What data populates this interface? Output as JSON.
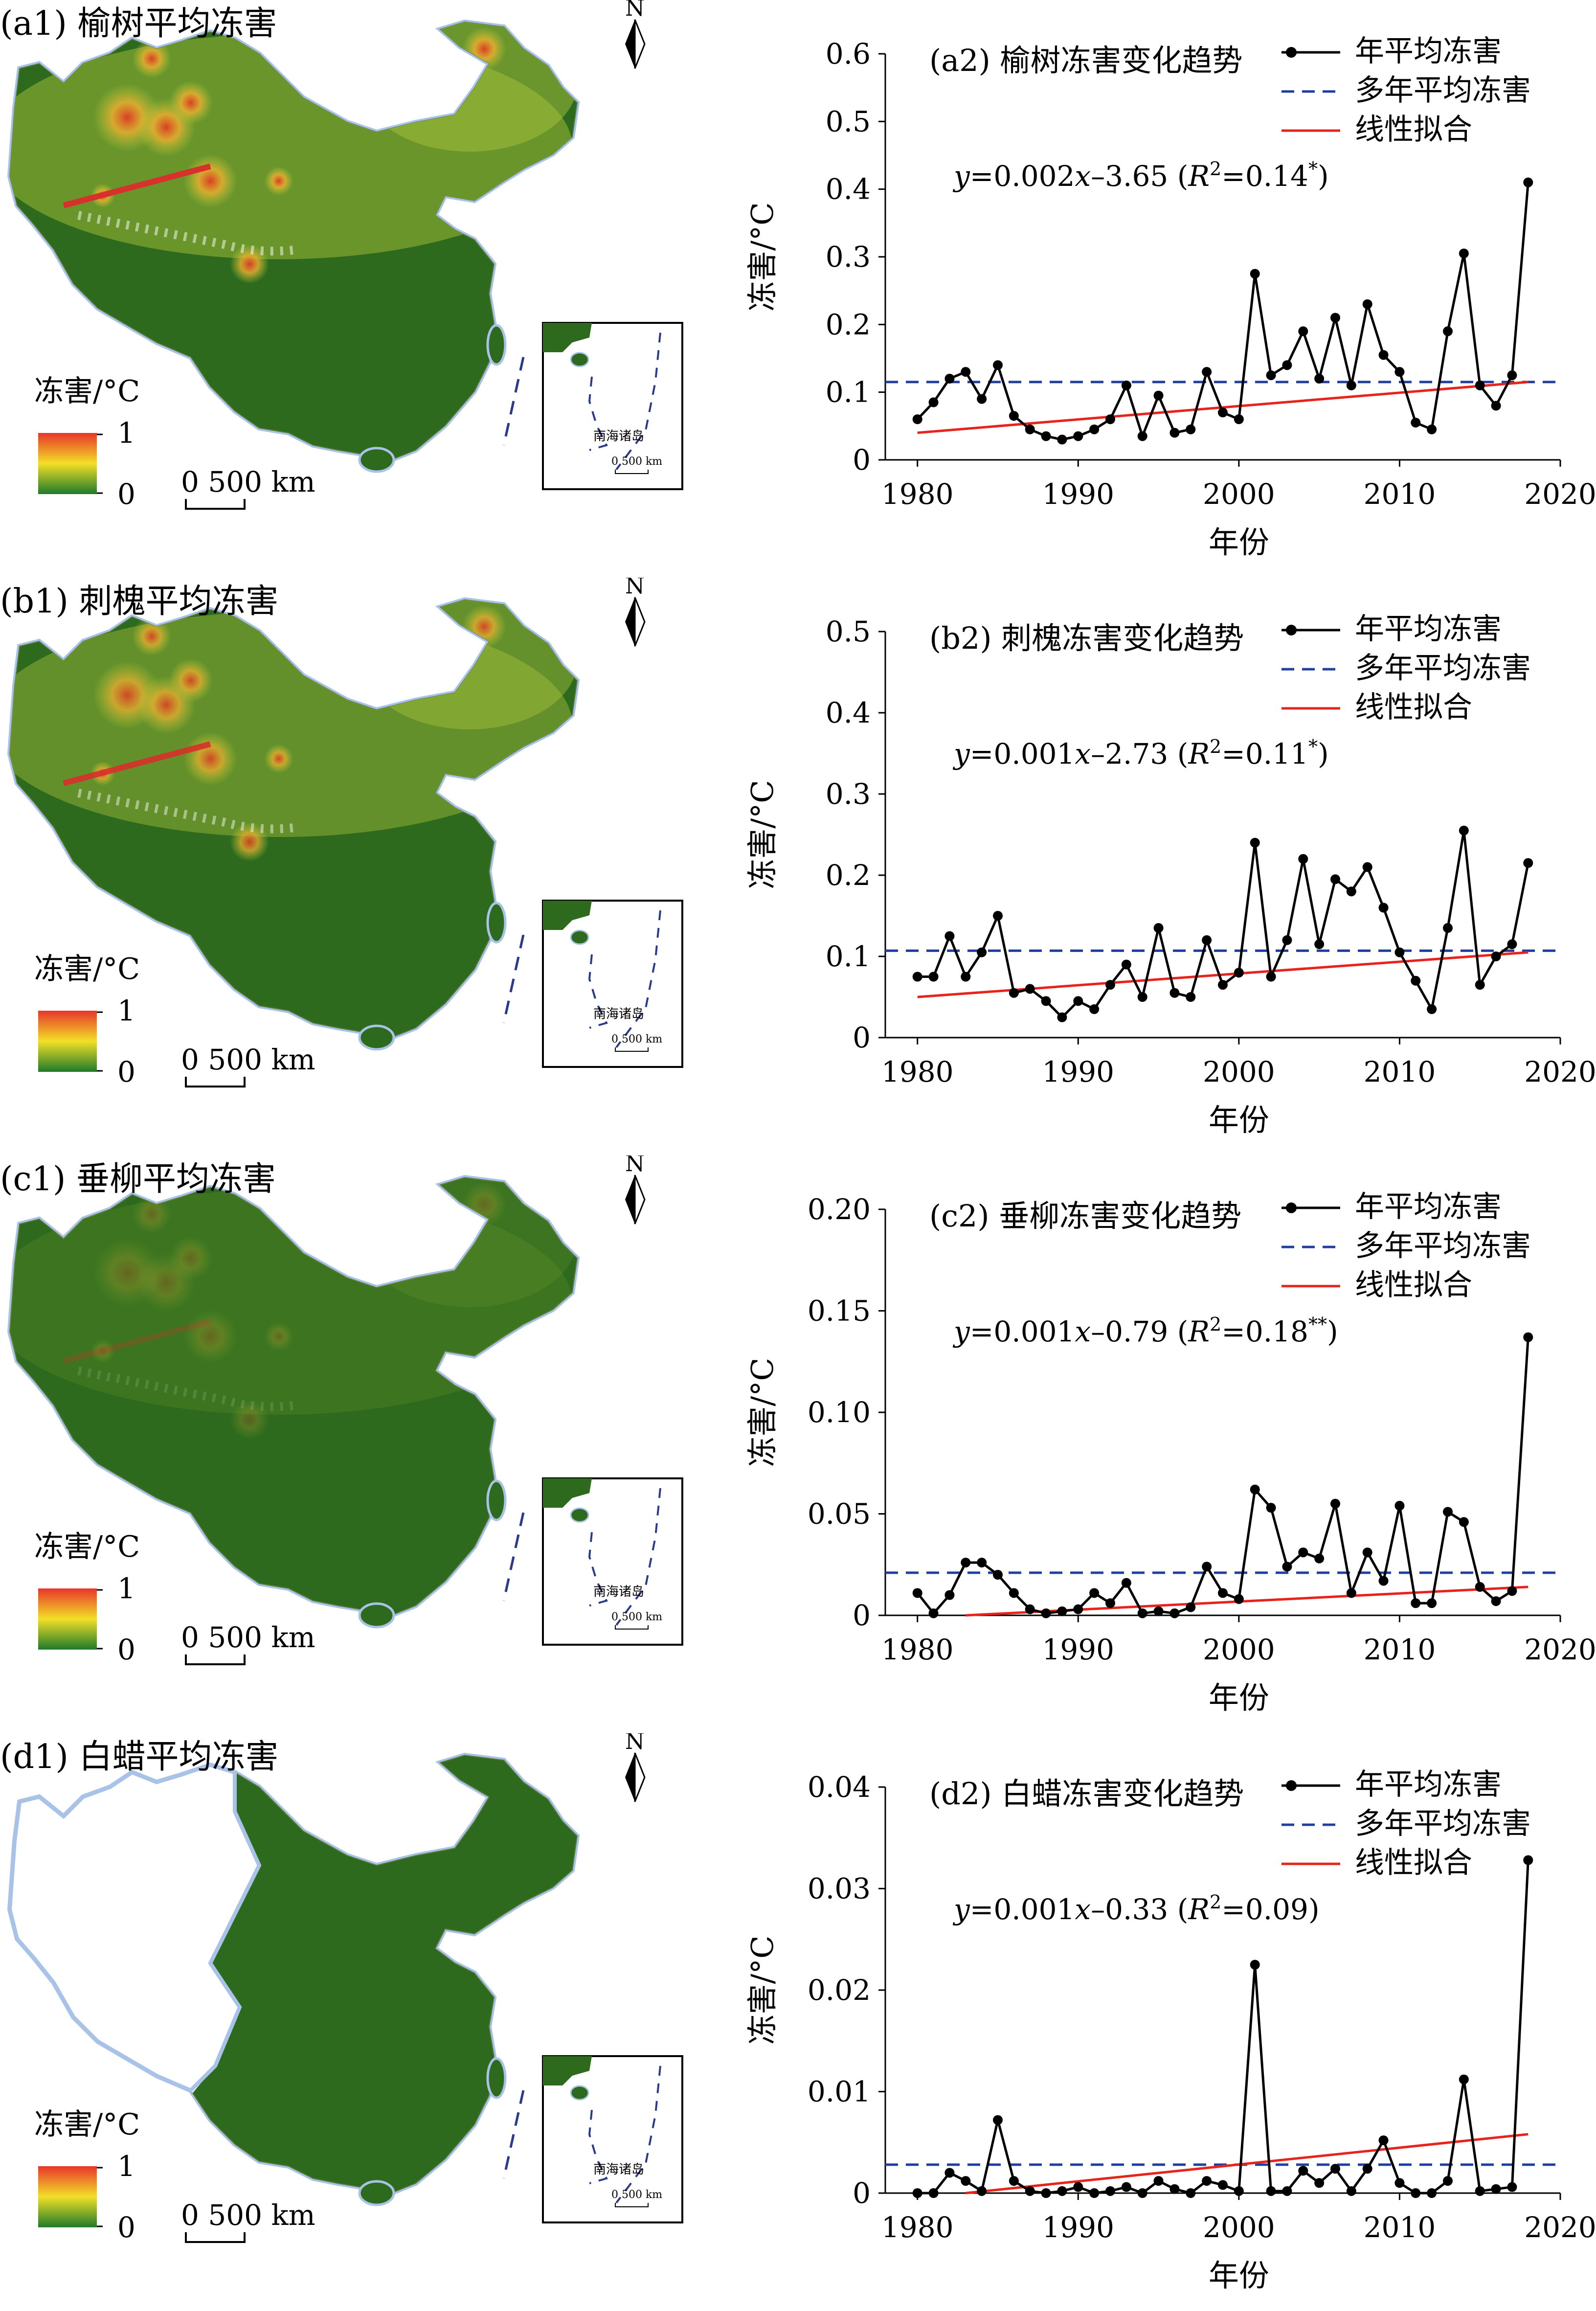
{
  "panels": [
    {
      "map": {
        "title": "(a1) 榆树平均冻害",
        "north": "N",
        "legend_title": "冻害/°C",
        "legend_max": "1",
        "legend_min": "0",
        "scale_text": "0   500 km",
        "inset_label": "南海诸岛",
        "inset_scale": "0   500 km",
        "west_blank": false,
        "hotspot_intensity": 1.0
      },
      "chart_data": {
        "type": "line",
        "title": "(a2) 榆树冻害变化趋势",
        "xlabel": "年份",
        "ylabel": "冻害/°C",
        "equation_parts": [
          "y",
          "=0.002",
          "x",
          "–3.65 (",
          "R",
          "2",
          "=0.14",
          "*",
          ")"
        ],
        "xlim": [
          1978,
          2020
        ],
        "ylim": [
          0,
          0.6
        ],
        "yticks": [
          "0",
          "0.1",
          "0.2",
          "0.3",
          "0.4",
          "0.5",
          "0.6"
        ],
        "ytick_values": [
          0,
          0.1,
          0.2,
          0.3,
          0.4,
          0.5,
          0.6
        ],
        "xticks": [
          "1980",
          "1990",
          "2000",
          "2010",
          "2020"
        ],
        "xtick_values": [
          1980,
          1990,
          2000,
          2010,
          2020
        ],
        "series": [
          {
            "name": "年平均冻害",
            "color": "#000000",
            "x": [
              1980,
              1981,
              1982,
              1983,
              1984,
              1985,
              1986,
              1987,
              1988,
              1989,
              1990,
              1991,
              1992,
              1993,
              1994,
              1995,
              1996,
              1997,
              1998,
              1999,
              2000,
              2001,
              2002,
              2003,
              2004,
              2005,
              2006,
              2007,
              2008,
              2009,
              2010,
              2011,
              2012,
              2013,
              2014,
              2015,
              2016,
              2017,
              2018
            ],
            "y": [
              0.06,
              0.085,
              0.12,
              0.13,
              0.09,
              0.14,
              0.065,
              0.045,
              0.035,
              0.03,
              0.035,
              0.045,
              0.06,
              0.11,
              0.035,
              0.095,
              0.04,
              0.045,
              0.13,
              0.07,
              0.06,
              0.275,
              0.125,
              0.14,
              0.19,
              0.12,
              0.21,
              0.11,
              0.23,
              0.155,
              0.13,
              0.055,
              0.045,
              0.19,
              0.305,
              0.11,
              0.08,
              0.125,
              0.41
            ]
          },
          {
            "name": "多年平均冻害",
            "color": "#1f3e9e",
            "value": 0.115
          },
          {
            "name": "线性拟合",
            "color": "#e8231b",
            "x": [
              1980,
              2018
            ],
            "y": [
              0.04,
              0.115
            ]
          }
        ]
      }
    },
    {
      "map": {
        "title": "(b1) 刺槐平均冻害",
        "north": "N",
        "legend_title": "冻害/°C",
        "legend_max": "1",
        "legend_min": "0",
        "scale_text": "0   500 km",
        "inset_label": "南海诸岛",
        "inset_scale": "0   500 km",
        "west_blank": false,
        "hotspot_intensity": 0.9
      },
      "chart_data": {
        "type": "line",
        "title": "(b2) 刺槐冻害变化趋势",
        "xlabel": "年份",
        "ylabel": "冻害/°C",
        "equation_parts": [
          "y",
          "=0.001",
          "x",
          "–2.73 (",
          "R",
          "2",
          "=0.11",
          "*",
          ")"
        ],
        "xlim": [
          1978,
          2020
        ],
        "ylim": [
          0,
          0.5
        ],
        "yticks": [
          "0",
          "0.1",
          "0.2",
          "0.3",
          "0.4",
          "0.5"
        ],
        "ytick_values": [
          0,
          0.1,
          0.2,
          0.3,
          0.4,
          0.5
        ],
        "xticks": [
          "1980",
          "1990",
          "2000",
          "2010",
          "2020"
        ],
        "xtick_values": [
          1980,
          1990,
          2000,
          2010,
          2020
        ],
        "series": [
          {
            "name": "年平均冻害",
            "color": "#000000",
            "x": [
              1980,
              1981,
              1982,
              1983,
              1984,
              1985,
              1986,
              1987,
              1988,
              1989,
              1990,
              1991,
              1992,
              1993,
              1994,
              1995,
              1996,
              1997,
              1998,
              1999,
              2000,
              2001,
              2002,
              2003,
              2004,
              2005,
              2006,
              2007,
              2008,
              2009,
              2010,
              2011,
              2012,
              2013,
              2014,
              2015,
              2016,
              2017,
              2018
            ],
            "y": [
              0.075,
              0.075,
              0.125,
              0.075,
              0.105,
              0.15,
              0.055,
              0.06,
              0.045,
              0.025,
              0.045,
              0.035,
              0.065,
              0.09,
              0.05,
              0.135,
              0.055,
              0.05,
              0.12,
              0.065,
              0.08,
              0.24,
              0.075,
              0.12,
              0.22,
              0.115,
              0.195,
              0.18,
              0.21,
              0.16,
              0.105,
              0.07,
              0.035,
              0.135,
              0.255,
              0.065,
              0.1,
              0.115,
              0.215
            ]
          },
          {
            "name": "多年平均冻害",
            "color": "#1f3e9e",
            "value": 0.107
          },
          {
            "name": "线性拟合",
            "color": "#e8231b",
            "x": [
              1980,
              2018
            ],
            "y": [
              0.05,
              0.105
            ]
          }
        ]
      }
    },
    {
      "map": {
        "title": "(c1) 垂柳平均冻害",
        "north": "N",
        "legend_title": "冻害/°C",
        "legend_max": "1",
        "legend_min": "0",
        "scale_text": "0   500 km",
        "inset_label": "南海诸岛",
        "inset_scale": "0   500 km",
        "west_blank": false,
        "hotspot_intensity": 0.25
      },
      "chart_data": {
        "type": "line",
        "title": "(c2) 垂柳冻害变化趋势",
        "xlabel": "年份",
        "ylabel": "冻害/°C",
        "equation_parts": [
          "y",
          "=0.001",
          "x",
          "–0.79 (",
          "R",
          "2",
          "=0.18",
          "**",
          ")"
        ],
        "xlim": [
          1978,
          2020
        ],
        "ylim": [
          0,
          0.2
        ],
        "yticks": [
          "0",
          "0.05",
          "0.10",
          "0.15",
          "0.20"
        ],
        "ytick_values": [
          0,
          0.05,
          0.1,
          0.15,
          0.2
        ],
        "xticks": [
          "1980",
          "1990",
          "2000",
          "2010",
          "2020"
        ],
        "xtick_values": [
          1980,
          1990,
          2000,
          2010,
          2020
        ],
        "series": [
          {
            "name": "年平均冻害",
            "color": "#000000",
            "x": [
              1980,
              1981,
              1982,
              1983,
              1984,
              1985,
              1986,
              1987,
              1988,
              1989,
              1990,
              1991,
              1992,
              1993,
              1994,
              1995,
              1996,
              1997,
              1998,
              1999,
              2000,
              2001,
              2002,
              2003,
              2004,
              2005,
              2006,
              2007,
              2008,
              2009,
              2010,
              2011,
              2012,
              2013,
              2014,
              2015,
              2016,
              2017,
              2018
            ],
            "y": [
              0.011,
              0.001,
              0.01,
              0.026,
              0.026,
              0.02,
              0.011,
              0.003,
              0.001,
              0.002,
              0.003,
              0.011,
              0.006,
              0.016,
              0.001,
              0.002,
              0.001,
              0.004,
              0.024,
              0.011,
              0.008,
              0.062,
              0.053,
              0.024,
              0.031,
              0.028,
              0.055,
              0.011,
              0.031,
              0.017,
              0.054,
              0.006,
              0.006,
              0.051,
              0.046,
              0.014,
              0.007,
              0.012,
              0.137
            ]
          },
          {
            "name": "多年平均冻害",
            "color": "#1f3e9e",
            "value": 0.021
          },
          {
            "name": "线性拟合",
            "color": "#e8231b",
            "x": [
              1983,
              2018
            ],
            "y": [
              0.0,
              0.014
            ]
          }
        ]
      }
    },
    {
      "map": {
        "title": "(d1) 白蜡平均冻害",
        "north": "N",
        "legend_title": "冻害/°C",
        "legend_max": "1",
        "legend_min": "0",
        "scale_text": "0   500 km",
        "inset_label": "南海诸岛",
        "inset_scale": "0   500 km",
        "west_blank": true,
        "hotspot_intensity": 0.0
      },
      "chart_data": {
        "type": "line",
        "title": "(d2) 白蜡冻害变化趋势",
        "xlabel": "年份",
        "ylabel": "冻害/°C",
        "equation_parts": [
          "y",
          "=0.001",
          "x",
          "–0.33 (",
          "R",
          "2",
          "=0.09",
          "",
          ")"
        ],
        "xlim": [
          1978,
          2020
        ],
        "ylim": [
          0,
          0.04
        ],
        "yticks": [
          "0",
          "0.01",
          "0.02",
          "0.03",
          "0.04"
        ],
        "ytick_values": [
          0,
          0.01,
          0.02,
          0.03,
          0.04
        ],
        "xticks": [
          "1980",
          "1990",
          "2000",
          "2010",
          "2020"
        ],
        "xtick_values": [
          1980,
          1990,
          2000,
          2010,
          2020
        ],
        "series": [
          {
            "name": "年平均冻害",
            "color": "#000000",
            "x": [
              1980,
              1981,
              1982,
              1983,
              1984,
              1985,
              1986,
              1987,
              1988,
              1989,
              1990,
              1991,
              1992,
              1993,
              1994,
              1995,
              1996,
              1997,
              1998,
              1999,
              2000,
              2001,
              2002,
              2003,
              2004,
              2005,
              2006,
              2007,
              2008,
              2009,
              2010,
              2011,
              2012,
              2013,
              2014,
              2015,
              2016,
              2017,
              2018
            ],
            "y": [
              0,
              0,
              0.002,
              0.0012,
              0.0002,
              0.0072,
              0.0012,
              0.0002,
              0,
              0.0002,
              0.0006,
              0,
              0.0002,
              0.0006,
              0,
              0.0012,
              0.0004,
              0,
              0.0012,
              0.0008,
              0.0002,
              0.0225,
              0.0002,
              0.0002,
              0.0022,
              0.001,
              0.0024,
              0.0002,
              0.0024,
              0.0052,
              0.001,
              0,
              0,
              0.0012,
              0.0112,
              0.0002,
              0.0004,
              0.0006,
              0.0328
            ]
          },
          {
            "name": "多年平均冻害",
            "color": "#1f3e9e",
            "value": 0.0028
          },
          {
            "name": "线性拟合",
            "color": "#e8231b",
            "x": [
              1983,
              2018
            ],
            "y": [
              0.0,
              0.0058
            ]
          }
        ]
      }
    }
  ]
}
